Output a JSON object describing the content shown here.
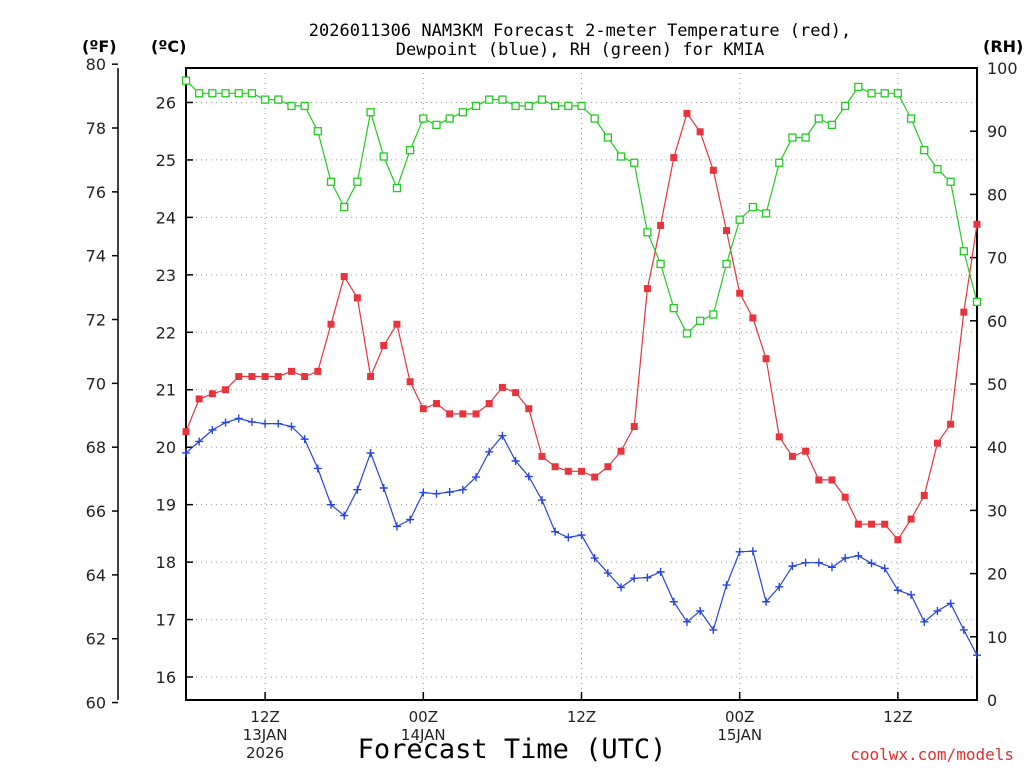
{
  "chart_data": {
    "type": "line",
    "title_line1": "2026011306 NAM3KM Forecast 2-meter Temperature (red),",
    "title_line2": "Dewpoint (blue), RH (green) for KMIA",
    "xlabel": "Forecast Time (UTC)",
    "unit_left_f": "(ºF)",
    "unit_left_c": "(ºC)",
    "unit_right": "(RH)",
    "credit": "coolwx.com/models",
    "grid": true,
    "celsius_axis": {
      "range": [
        15.6,
        26.6
      ],
      "ticks": [
        "16",
        "17",
        "18",
        "19",
        "20",
        "21",
        "22",
        "23",
        "24",
        "25",
        "26"
      ]
    },
    "fahrenheit_axis": {
      "ticks": [
        "60",
        "62",
        "64",
        "66",
        "68",
        "70",
        "72",
        "74",
        "76",
        "78",
        "80"
      ]
    },
    "rh_axis": {
      "range": [
        0,
        100
      ],
      "ticks": [
        "0",
        "10",
        "20",
        "30",
        "40",
        "50",
        "60",
        "70",
        "80",
        "90",
        "100"
      ]
    },
    "x_range_hours": [
      6,
      66
    ],
    "x_ticks": [
      {
        "hour": 12,
        "lines": [
          "12Z",
          "13JAN",
          "2026"
        ]
      },
      {
        "hour": 24,
        "lines": [
          "00Z",
          "14JAN"
        ]
      },
      {
        "hour": 36,
        "lines": [
          "12Z"
        ]
      },
      {
        "hour": 48,
        "lines": [
          "00Z",
          "15JAN"
        ]
      },
      {
        "hour": 60,
        "lines": [
          "12Z"
        ]
      }
    ],
    "series": [
      {
        "name": "Temperature",
        "color": "#e8343c",
        "marker": "filled-square",
        "axis": "celsius",
        "x": [
          6,
          7,
          8,
          9,
          10,
          11,
          12,
          13,
          14,
          15,
          16,
          17,
          18,
          19,
          20,
          21,
          22,
          23,
          24,
          25,
          26,
          27,
          28,
          29,
          30,
          31,
          32,
          33,
          34,
          35,
          36,
          37,
          38,
          39,
          40,
          41,
          42,
          43,
          44,
          45,
          46,
          47,
          48,
          49,
          50,
          51,
          52,
          53,
          54,
          55,
          56,
          57,
          58,
          59,
          60,
          61,
          62,
          63,
          64,
          65,
          66
        ],
        "values": [
          20.27,
          20.84,
          20.93,
          21.0,
          21.23,
          21.23,
          21.23,
          21.23,
          21.32,
          21.23,
          21.32,
          22.14,
          22.97,
          22.6,
          21.23,
          21.77,
          22.14,
          21.14,
          20.67,
          20.76,
          20.58,
          20.58,
          20.58,
          20.76,
          21.04,
          20.95,
          20.67,
          19.84,
          19.66,
          19.58,
          19.58,
          19.48,
          19.66,
          19.93,
          20.36,
          22.76,
          23.86,
          25.04,
          25.81,
          25.49,
          24.82,
          23.77,
          22.68,
          22.25,
          21.54,
          20.18,
          19.84,
          19.93,
          19.43,
          19.43,
          19.13,
          18.66,
          18.66,
          18.66,
          18.39,
          18.75,
          19.16,
          20.07,
          20.4,
          22.35,
          23.88
        ]
      },
      {
        "name": "Dewpoint",
        "color": "#2644e0",
        "marker": "plus",
        "axis": "celsius",
        "x": [
          6,
          7,
          8,
          9,
          10,
          11,
          12,
          13,
          14,
          15,
          16,
          17,
          18,
          19,
          20,
          21,
          22,
          23,
          24,
          25,
          26,
          27,
          28,
          29,
          30,
          31,
          32,
          33,
          34,
          35,
          36,
          37,
          38,
          39,
          40,
          41,
          42,
          43,
          44,
          45,
          46,
          47,
          48,
          49,
          50,
          51,
          52,
          53,
          54,
          55,
          56,
          57,
          58,
          59,
          60,
          61,
          62,
          63,
          64,
          65,
          66
        ],
        "values": [
          19.9,
          20.1,
          20.3,
          20.43,
          20.5,
          20.44,
          20.41,
          20.41,
          20.36,
          20.14,
          19.63,
          19.0,
          18.81,
          19.26,
          19.9,
          19.29,
          18.62,
          18.74,
          19.21,
          19.19,
          19.22,
          19.26,
          19.48,
          19.92,
          20.2,
          19.76,
          19.49,
          19.08,
          18.53,
          18.43,
          18.47,
          18.07,
          17.81,
          17.56,
          17.72,
          17.73,
          17.83,
          17.31,
          16.96,
          17.15,
          16.82,
          17.6,
          18.18,
          18.19,
          17.31,
          17.57,
          17.93,
          17.99,
          17.99,
          17.91,
          18.07,
          18.11,
          17.98,
          17.89,
          17.51,
          17.43,
          16.96,
          17.15,
          17.28,
          16.82,
          16.38
        ]
      },
      {
        "name": "RH",
        "color": "#22cc22",
        "marker": "open-square",
        "axis": "rh",
        "x": [
          6,
          7,
          8,
          9,
          10,
          11,
          12,
          13,
          14,
          15,
          16,
          17,
          18,
          19,
          20,
          21,
          22,
          23,
          24,
          25,
          26,
          27,
          28,
          29,
          30,
          31,
          32,
          33,
          34,
          35,
          36,
          37,
          38,
          39,
          40,
          41,
          42,
          43,
          44,
          45,
          46,
          47,
          48,
          49,
          50,
          51,
          52,
          53,
          54,
          55,
          56,
          57,
          58,
          59,
          60,
          61,
          62,
          63,
          64,
          65,
          66
        ],
        "values": [
          98,
          96,
          96,
          96,
          96,
          96,
          95,
          95,
          94,
          94,
          90,
          82,
          78,
          82,
          93,
          86,
          81,
          87,
          92,
          91,
          92,
          93,
          94,
          95,
          95,
          94,
          94,
          95,
          94,
          94,
          94,
          92,
          89,
          86,
          85,
          74,
          69,
          62,
          58,
          60,
          61,
          69,
          76,
          78,
          77,
          85,
          89,
          89,
          92,
          91,
          94,
          97,
          96,
          96,
          96,
          92,
          87,
          84,
          82,
          71,
          63
        ]
      }
    ]
  }
}
